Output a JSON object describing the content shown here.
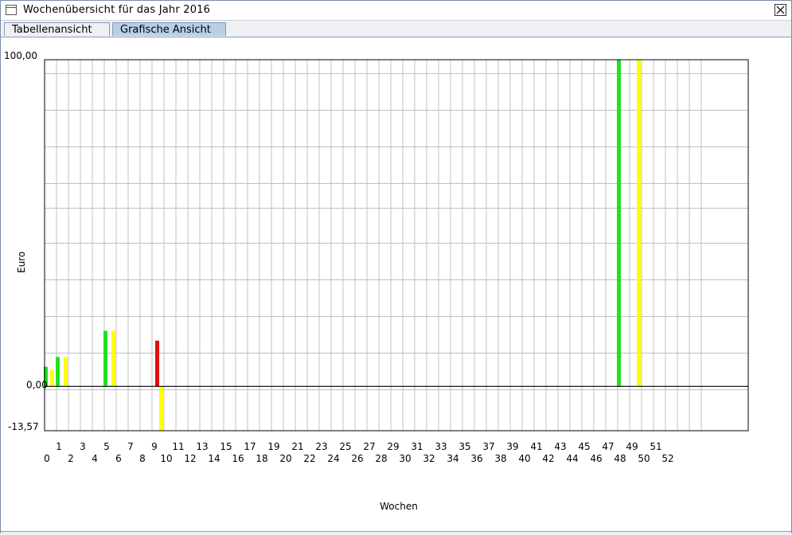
{
  "window": {
    "title": "Wochenübersicht für das Jahr 2016",
    "icon": "window-icon",
    "close_icon": "close-icon"
  },
  "tabs": [
    {
      "label": "Tabellenansicht",
      "active": false
    },
    {
      "label": "Grafische Ansicht",
      "active": true
    }
  ],
  "colors": {
    "green": "#22e022",
    "yellow": "#ffff00",
    "red": "#e01010",
    "grid": "#c0c0c0",
    "tab_active": "#b8cfe5"
  },
  "chart_data": {
    "type": "bar",
    "xlabel": "Wochen",
    "ylabel": "Euro",
    "ylim": [
      -13.57,
      100.0
    ],
    "ytick_labels": [
      "100,00",
      "0,00",
      "-13,57"
    ],
    "xtick_labels_top": [
      "1",
      "3",
      "5",
      "7",
      "9",
      "11",
      "13",
      "15",
      "17",
      "19",
      "21",
      "23",
      "25",
      "27",
      "29",
      "31",
      "33",
      "35",
      "37",
      "39",
      "41",
      "43",
      "45",
      "47",
      "49",
      "51"
    ],
    "xtick_labels_bottom": [
      "0",
      "2",
      "4",
      "6",
      "8",
      "10",
      "12",
      "14",
      "16",
      "18",
      "20",
      "22",
      "24",
      "26",
      "28",
      "30",
      "32",
      "34",
      "36",
      "38",
      "40",
      "42",
      "44",
      "46",
      "48",
      "50",
      "52"
    ],
    "categories": [
      "0",
      "1",
      "2",
      "3",
      "4",
      "5",
      "6",
      "7",
      "8",
      "9",
      "10",
      "11",
      "12",
      "13",
      "14",
      "15",
      "16",
      "17",
      "18",
      "19",
      "20",
      "21",
      "22",
      "23",
      "24",
      "25",
      "26",
      "27",
      "28",
      "29",
      "30",
      "31",
      "32",
      "33",
      "34",
      "35",
      "36",
      "37",
      "38",
      "39",
      "40",
      "41",
      "42",
      "43",
      "44",
      "45",
      "46",
      "47",
      "48",
      "49",
      "50",
      "51",
      "52"
    ],
    "series": [
      {
        "color": "#22e022",
        "points": [
          {
            "week": 0,
            "value": 6
          },
          {
            "week": 1,
            "value": 9
          },
          {
            "week": 5,
            "value": 17
          },
          {
            "week": 48,
            "value": 100
          }
        ]
      },
      {
        "color": "#ffff00",
        "points": [
          {
            "week": 0,
            "value": 5
          },
          {
            "week": 1,
            "value": 9
          },
          {
            "week": 5,
            "value": 17
          },
          {
            "week": 9,
            "value": -13.57
          },
          {
            "week": 49,
            "value": 100
          }
        ]
      },
      {
        "color": "#e01010",
        "points": [
          {
            "week": 9,
            "value": 14
          }
        ]
      }
    ]
  }
}
